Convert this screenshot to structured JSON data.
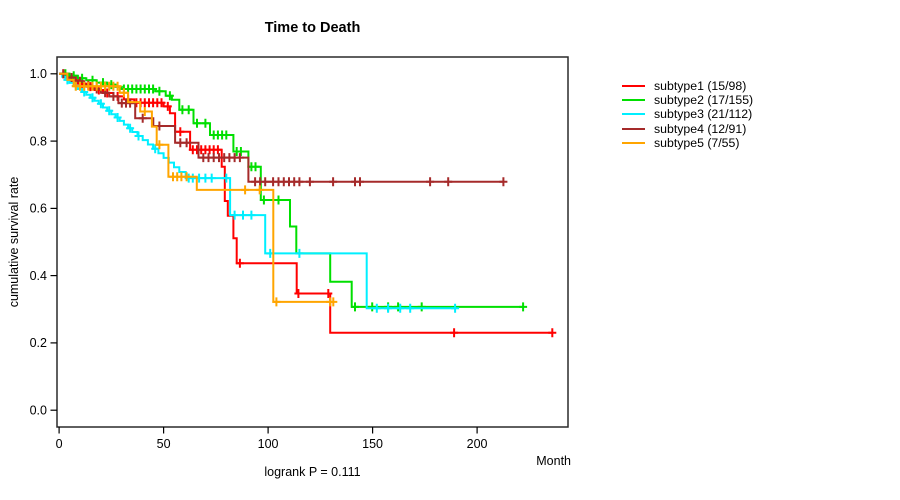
{
  "chart_data": {
    "type": "line",
    "subtype": "kaplan-meier-survival",
    "title": "Time to Death",
    "xlabel": "Month",
    "ylabel": "cumulative survival rate",
    "annotation": "logrank P = 0.111",
    "x_ticks": [
      0,
      50,
      100,
      150,
      200
    ],
    "y_ticks": [
      0.0,
      0.2,
      0.4,
      0.6,
      0.8,
      1.0
    ],
    "xlim": [
      -1,
      243.5
    ],
    "ylim": [
      -0.05,
      1.05
    ],
    "grid": false,
    "legend_position": "right",
    "censor_marker": "plus",
    "series": [
      {
        "name": "subtype1",
        "label": "subtype1 (15/98)",
        "color": "#FF0000",
        "steps": [
          [
            0,
            1
          ],
          [
            3,
            0.99
          ],
          [
            6,
            0.981
          ],
          [
            9,
            0.971
          ],
          [
            13,
            0.962
          ],
          [
            17,
            0.952
          ],
          [
            21,
            0.943
          ],
          [
            26,
            0.933
          ],
          [
            31,
            0.924
          ],
          [
            36,
            0.914
          ],
          [
            50,
            0.903
          ],
          [
            53,
            0.883
          ],
          [
            55.5,
            0.828
          ],
          [
            62.7,
            0.774
          ],
          [
            77.8,
            0.724
          ],
          [
            79.3,
            0.622
          ],
          [
            80.7,
            0.578
          ],
          [
            83.4,
            0.511
          ],
          [
            85,
            0.437
          ],
          [
            113.7,
            0.347
          ],
          [
            129.7,
            0.23
          ]
        ],
        "end": 236,
        "censors": [
          2,
          5,
          8,
          11,
          15,
          19,
          23,
          28,
          33,
          37,
          39,
          41,
          43,
          45,
          47,
          49,
          52,
          58,
          64,
          66,
          68,
          70,
          72,
          74,
          76,
          86.5,
          114.5,
          128.8,
          189,
          236
        ]
      },
      {
        "name": "subtype2",
        "label": "subtype2 (17/155)",
        "color": "#00DF00",
        "steps": [
          [
            0,
            1
          ],
          [
            5,
            0.994
          ],
          [
            9,
            0.987
          ],
          [
            13,
            0.981
          ],
          [
            18,
            0.974
          ],
          [
            23,
            0.968
          ],
          [
            27,
            0.961
          ],
          [
            30,
            0.955
          ],
          [
            46,
            0.948
          ],
          [
            51,
            0.935
          ],
          [
            54,
            0.923
          ],
          [
            57.5,
            0.893
          ],
          [
            64.3,
            0.853
          ],
          [
            72.2,
            0.818
          ],
          [
            83.4,
            0.769
          ],
          [
            90.6,
            0.724
          ],
          [
            96.5,
            0.625
          ],
          [
            110.5,
            0.546
          ],
          [
            113.5,
            0.466
          ],
          [
            129.7,
            0.382
          ],
          [
            140,
            0.307
          ]
        ],
        "end": 222,
        "censors": [
          3,
          7,
          11,
          16,
          21,
          25,
          31,
          33,
          35,
          37,
          39,
          41,
          43,
          45,
          48,
          53,
          59,
          62,
          66,
          70,
          74,
          76,
          78,
          80,
          85,
          87,
          92,
          94,
          98,
          105,
          141.6,
          149.8,
          157.4,
          162.2,
          173.5,
          222
        ]
      },
      {
        "name": "subtype3",
        "label": "subtype3 (21/112)",
        "color": "#00EFFF",
        "steps": [
          [
            0,
            1
          ],
          [
            1.5,
            0.991
          ],
          [
            3,
            0.982
          ],
          [
            5,
            0.973
          ],
          [
            7,
            0.964
          ],
          [
            9,
            0.955
          ],
          [
            11,
            0.946
          ],
          [
            13,
            0.938
          ],
          [
            15,
            0.929
          ],
          [
            17,
            0.92
          ],
          [
            19,
            0.911
          ],
          [
            21,
            0.9
          ],
          [
            23,
            0.89
          ],
          [
            25,
            0.88
          ],
          [
            27,
            0.87
          ],
          [
            29,
            0.86
          ],
          [
            31,
            0.849
          ],
          [
            33,
            0.838
          ],
          [
            35,
            0.827
          ],
          [
            37.5,
            0.815
          ],
          [
            40,
            0.803
          ],
          [
            42.5,
            0.79
          ],
          [
            45,
            0.777
          ],
          [
            47.5,
            0.764
          ],
          [
            50,
            0.75
          ],
          [
            52.5,
            0.736
          ],
          [
            55,
            0.722
          ],
          [
            57.5,
            0.708
          ],
          [
            60.6,
            0.69
          ],
          [
            81.8,
            0.58
          ],
          [
            98.6,
            0.466
          ],
          [
            147.2,
            0.303
          ]
        ],
        "end": 189.5,
        "censors": [
          4,
          8,
          12,
          16,
          20,
          24,
          28,
          34,
          38,
          46,
          62,
          64,
          67,
          70,
          73,
          80,
          84,
          88,
          92,
          101,
          115,
          152,
          157.4,
          163.2,
          168,
          189.5
        ]
      },
      {
        "name": "subtype4",
        "label": "subtype4 (12/91)",
        "color": "#A52A2A",
        "steps": [
          [
            0,
            1
          ],
          [
            4,
            0.989
          ],
          [
            8,
            0.978
          ],
          [
            12,
            0.966
          ],
          [
            16,
            0.955
          ],
          [
            20,
            0.944
          ],
          [
            24,
            0.933
          ],
          [
            28.4,
            0.913
          ],
          [
            36.4,
            0.868
          ],
          [
            45.1,
            0.845
          ],
          [
            55.5,
            0.795
          ],
          [
            66.7,
            0.751
          ],
          [
            90.6,
            0.679
          ]
        ],
        "end": 212.6,
        "censors": [
          2,
          6,
          10,
          14,
          18,
          22,
          26,
          30,
          32,
          34,
          40,
          48,
          58,
          61,
          69,
          71.5,
          74,
          76.5,
          79,
          81.5,
          84,
          86.5,
          93.8,
          96.2,
          98.6,
          102.4,
          105,
          107.5,
          110,
          112.5,
          115,
          120,
          131.1,
          141.6,
          144,
          177.5,
          186.2,
          212.6
        ]
      },
      {
        "name": "subtype5",
        "label": "subtype5 (7/55)",
        "color": "#FFA500",
        "steps": [
          [
            0,
            1
          ],
          [
            4,
            0.982
          ],
          [
            7,
            0.963
          ],
          [
            29,
            0.944
          ],
          [
            33,
            0.916
          ],
          [
            38.8,
            0.888
          ],
          [
            44.4,
            0.843
          ],
          [
            46.7,
            0.789
          ],
          [
            52.3,
            0.694
          ],
          [
            65.9,
            0.655
          ],
          [
            102.5,
            0.322
          ]
        ],
        "end": 131.2,
        "censors": [
          8,
          10,
          12,
          14,
          16,
          18,
          20,
          22,
          24,
          26,
          28,
          31,
          41,
          48,
          54.5,
          56.5,
          58.5,
          61,
          89,
          96,
          104,
          129.7,
          131.2
        ]
      }
    ]
  }
}
